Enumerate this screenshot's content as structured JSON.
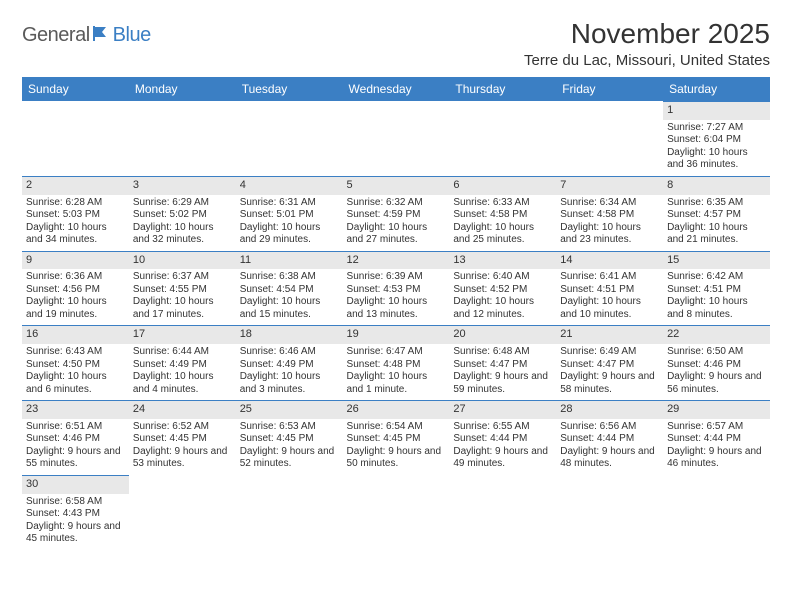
{
  "logo": {
    "text1": "General",
    "text2": "Blue"
  },
  "title": "November 2025",
  "location": "Terre du Lac, Missouri, United States",
  "colors": {
    "header_bg": "#3b7fc4",
    "header_text": "#ffffff",
    "daynum_bg": "#e8e8e8",
    "border": "#3b7fc4",
    "text": "#333333",
    "logo_blue": "#3b7fc4",
    "logo_grey": "#5a5a5a"
  },
  "typography": {
    "title_fontsize": 28,
    "location_fontsize": 15,
    "header_fontsize": 12,
    "daynum_fontsize": 11,
    "cell_fontsize": 10
  },
  "day_headers": [
    "Sunday",
    "Monday",
    "Tuesday",
    "Wednesday",
    "Thursday",
    "Friday",
    "Saturday"
  ],
  "weeks": [
    [
      null,
      null,
      null,
      null,
      null,
      null,
      {
        "n": "1",
        "sunrise": "Sunrise: 7:27 AM",
        "sunset": "Sunset: 6:04 PM",
        "daylight": "Daylight: 10 hours and 36 minutes."
      }
    ],
    [
      {
        "n": "2",
        "sunrise": "Sunrise: 6:28 AM",
        "sunset": "Sunset: 5:03 PM",
        "daylight": "Daylight: 10 hours and 34 minutes."
      },
      {
        "n": "3",
        "sunrise": "Sunrise: 6:29 AM",
        "sunset": "Sunset: 5:02 PM",
        "daylight": "Daylight: 10 hours and 32 minutes."
      },
      {
        "n": "4",
        "sunrise": "Sunrise: 6:31 AM",
        "sunset": "Sunset: 5:01 PM",
        "daylight": "Daylight: 10 hours and 29 minutes."
      },
      {
        "n": "5",
        "sunrise": "Sunrise: 6:32 AM",
        "sunset": "Sunset: 4:59 PM",
        "daylight": "Daylight: 10 hours and 27 minutes."
      },
      {
        "n": "6",
        "sunrise": "Sunrise: 6:33 AM",
        "sunset": "Sunset: 4:58 PM",
        "daylight": "Daylight: 10 hours and 25 minutes."
      },
      {
        "n": "7",
        "sunrise": "Sunrise: 6:34 AM",
        "sunset": "Sunset: 4:58 PM",
        "daylight": "Daylight: 10 hours and 23 minutes."
      },
      {
        "n": "8",
        "sunrise": "Sunrise: 6:35 AM",
        "sunset": "Sunset: 4:57 PM",
        "daylight": "Daylight: 10 hours and 21 minutes."
      }
    ],
    [
      {
        "n": "9",
        "sunrise": "Sunrise: 6:36 AM",
        "sunset": "Sunset: 4:56 PM",
        "daylight": "Daylight: 10 hours and 19 minutes."
      },
      {
        "n": "10",
        "sunrise": "Sunrise: 6:37 AM",
        "sunset": "Sunset: 4:55 PM",
        "daylight": "Daylight: 10 hours and 17 minutes."
      },
      {
        "n": "11",
        "sunrise": "Sunrise: 6:38 AM",
        "sunset": "Sunset: 4:54 PM",
        "daylight": "Daylight: 10 hours and 15 minutes."
      },
      {
        "n": "12",
        "sunrise": "Sunrise: 6:39 AM",
        "sunset": "Sunset: 4:53 PM",
        "daylight": "Daylight: 10 hours and 13 minutes."
      },
      {
        "n": "13",
        "sunrise": "Sunrise: 6:40 AM",
        "sunset": "Sunset: 4:52 PM",
        "daylight": "Daylight: 10 hours and 12 minutes."
      },
      {
        "n": "14",
        "sunrise": "Sunrise: 6:41 AM",
        "sunset": "Sunset: 4:51 PM",
        "daylight": "Daylight: 10 hours and 10 minutes."
      },
      {
        "n": "15",
        "sunrise": "Sunrise: 6:42 AM",
        "sunset": "Sunset: 4:51 PM",
        "daylight": "Daylight: 10 hours and 8 minutes."
      }
    ],
    [
      {
        "n": "16",
        "sunrise": "Sunrise: 6:43 AM",
        "sunset": "Sunset: 4:50 PM",
        "daylight": "Daylight: 10 hours and 6 minutes."
      },
      {
        "n": "17",
        "sunrise": "Sunrise: 6:44 AM",
        "sunset": "Sunset: 4:49 PM",
        "daylight": "Daylight: 10 hours and 4 minutes."
      },
      {
        "n": "18",
        "sunrise": "Sunrise: 6:46 AM",
        "sunset": "Sunset: 4:49 PM",
        "daylight": "Daylight: 10 hours and 3 minutes."
      },
      {
        "n": "19",
        "sunrise": "Sunrise: 6:47 AM",
        "sunset": "Sunset: 4:48 PM",
        "daylight": "Daylight: 10 hours and 1 minute."
      },
      {
        "n": "20",
        "sunrise": "Sunrise: 6:48 AM",
        "sunset": "Sunset: 4:47 PM",
        "daylight": "Daylight: 9 hours and 59 minutes."
      },
      {
        "n": "21",
        "sunrise": "Sunrise: 6:49 AM",
        "sunset": "Sunset: 4:47 PM",
        "daylight": "Daylight: 9 hours and 58 minutes."
      },
      {
        "n": "22",
        "sunrise": "Sunrise: 6:50 AM",
        "sunset": "Sunset: 4:46 PM",
        "daylight": "Daylight: 9 hours and 56 minutes."
      }
    ],
    [
      {
        "n": "23",
        "sunrise": "Sunrise: 6:51 AM",
        "sunset": "Sunset: 4:46 PM",
        "daylight": "Daylight: 9 hours and 55 minutes."
      },
      {
        "n": "24",
        "sunrise": "Sunrise: 6:52 AM",
        "sunset": "Sunset: 4:45 PM",
        "daylight": "Daylight: 9 hours and 53 minutes."
      },
      {
        "n": "25",
        "sunrise": "Sunrise: 6:53 AM",
        "sunset": "Sunset: 4:45 PM",
        "daylight": "Daylight: 9 hours and 52 minutes."
      },
      {
        "n": "26",
        "sunrise": "Sunrise: 6:54 AM",
        "sunset": "Sunset: 4:45 PM",
        "daylight": "Daylight: 9 hours and 50 minutes."
      },
      {
        "n": "27",
        "sunrise": "Sunrise: 6:55 AM",
        "sunset": "Sunset: 4:44 PM",
        "daylight": "Daylight: 9 hours and 49 minutes."
      },
      {
        "n": "28",
        "sunrise": "Sunrise: 6:56 AM",
        "sunset": "Sunset: 4:44 PM",
        "daylight": "Daylight: 9 hours and 48 minutes."
      },
      {
        "n": "29",
        "sunrise": "Sunrise: 6:57 AM",
        "sunset": "Sunset: 4:44 PM",
        "daylight": "Daylight: 9 hours and 46 minutes."
      }
    ],
    [
      {
        "n": "30",
        "sunrise": "Sunrise: 6:58 AM",
        "sunset": "Sunset: 4:43 PM",
        "daylight": "Daylight: 9 hours and 45 minutes."
      },
      null,
      null,
      null,
      null,
      null,
      null
    ]
  ]
}
